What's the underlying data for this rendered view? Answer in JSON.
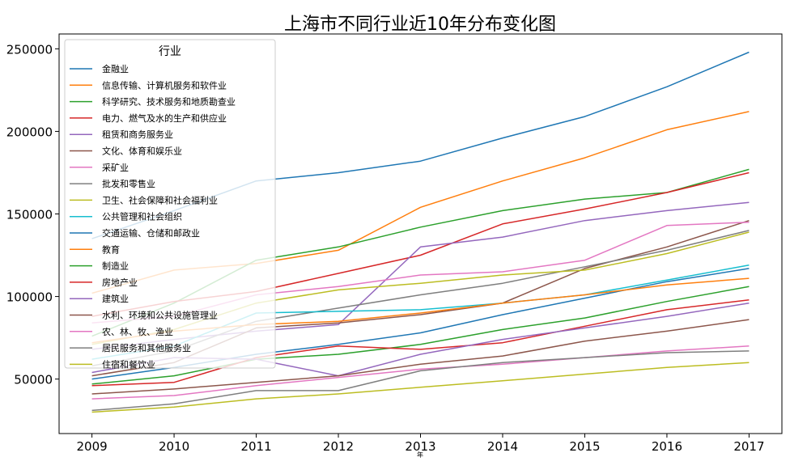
{
  "chart_data": {
    "type": "line",
    "title": "上海市不同行业近10年分布变化图",
    "xlabel": "年",
    "ylabel": "",
    "x": [
      2009,
      2010,
      2011,
      2012,
      2013,
      2014,
      2015,
      2016,
      2017
    ],
    "xlim": [
      2008.6,
      2017.4
    ],
    "ylim": [
      17000,
      259000
    ],
    "yticks": [
      50000,
      100000,
      150000,
      200000,
      250000
    ],
    "grid": false,
    "legend": {
      "title": "行业",
      "position": "upper-left"
    },
    "series": [
      {
        "name": "金融业",
        "color": "#1f77b4",
        "values": [
          135000,
          152000,
          170000,
          175000,
          182000,
          196000,
          209000,
          227000,
          248000
        ]
      },
      {
        "name": "信息传输、计算机服务和软件业",
        "color": "#ff7f0e",
        "values": [
          102000,
          116000,
          120000,
          128000,
          154000,
          170000,
          184000,
          201000,
          212000
        ]
      },
      {
        "name": "科学研究、技术服务和地质勘查业",
        "color": "#2ca02c",
        "values": [
          76000,
          96000,
          122000,
          130000,
          142000,
          152000,
          159000,
          163000,
          177000
        ]
      },
      {
        "name": "电力、燃气及水的生产和供应业",
        "color": "#d62728",
        "values": [
          88000,
          97000,
          103000,
          114000,
          125000,
          144000,
          153000,
          163000,
          175000
        ]
      },
      {
        "name": "租赁和商务服务业",
        "color": "#9467bd",
        "values": [
          68000,
          74000,
          79000,
          83000,
          130000,
          136000,
          146000,
          152000,
          157000
        ]
      },
      {
        "name": "文化、体育和娱乐业",
        "color": "#8c564b",
        "values": [
          52000,
          60000,
          81000,
          84000,
          89000,
          96000,
          117000,
          130000,
          146000
        ]
      },
      {
        "name": "采矿业",
        "color": "#e377c2",
        "values": [
          84000,
          88000,
          101000,
          106000,
          113000,
          115000,
          122000,
          143000,
          145000
        ]
      },
      {
        "name": "批发和零售业",
        "color": "#7f7f7f",
        "values": [
          58000,
          67000,
          85000,
          93000,
          101000,
          108000,
          118000,
          128000,
          140000
        ]
      },
      {
        "name": "卫生、社会保障和社会福利业",
        "color": "#bcbd22",
        "values": [
          71000,
          80000,
          96000,
          104000,
          108000,
          113000,
          116000,
          126000,
          139000
        ]
      },
      {
        "name": "公共管理和社会组织",
        "color": "#17becf",
        "values": [
          62000,
          70000,
          90000,
          91000,
          92000,
          96000,
          101000,
          110000,
          119000
        ]
      },
      {
        "name": "交通运输、仓储和邮政业",
        "color": "#1f77b4",
        "values": [
          50000,
          57000,
          65000,
          71000,
          78000,
          89000,
          99000,
          109000,
          117000
        ]
      },
      {
        "name": "教育",
        "color": "#ff7f0e",
        "values": [
          72000,
          79000,
          83000,
          85000,
          90000,
          96000,
          101000,
          107000,
          111000
        ]
      },
      {
        "name": "制造业",
        "color": "#2ca02c",
        "values": [
          47000,
          52000,
          62000,
          65000,
          71000,
          80000,
          87000,
          97000,
          106000
        ]
      },
      {
        "name": "房地产业",
        "color": "#d62728",
        "values": [
          46000,
          48000,
          63000,
          70000,
          68000,
          72000,
          82000,
          92000,
          98000
        ]
      },
      {
        "name": "建筑业",
        "color": "#9467bd",
        "values": [
          54000,
          63000,
          62000,
          52000,
          65000,
          74000,
          81000,
          88000,
          96000
        ]
      },
      {
        "name": "水利、环境和公共设施管理业",
        "color": "#8c564b",
        "values": [
          41000,
          44000,
          48000,
          52000,
          59000,
          64000,
          73000,
          79000,
          86000
        ]
      },
      {
        "name": "农、林、牧、渔业",
        "color": "#e377c2",
        "values": [
          38000,
          40000,
          46000,
          51000,
          56000,
          59000,
          63000,
          67000,
          70000
        ]
      },
      {
        "name": "居民服务和其他服务业",
        "color": "#7f7f7f",
        "values": [
          31000,
          35000,
          43000,
          43000,
          55000,
          60000,
          63000,
          66000,
          67000
        ]
      },
      {
        "name": "住宿和餐饮业",
        "color": "#bcbd22",
        "values": [
          30000,
          33000,
          38000,
          41000,
          45000,
          49000,
          53000,
          57000,
          60000
        ]
      }
    ]
  }
}
